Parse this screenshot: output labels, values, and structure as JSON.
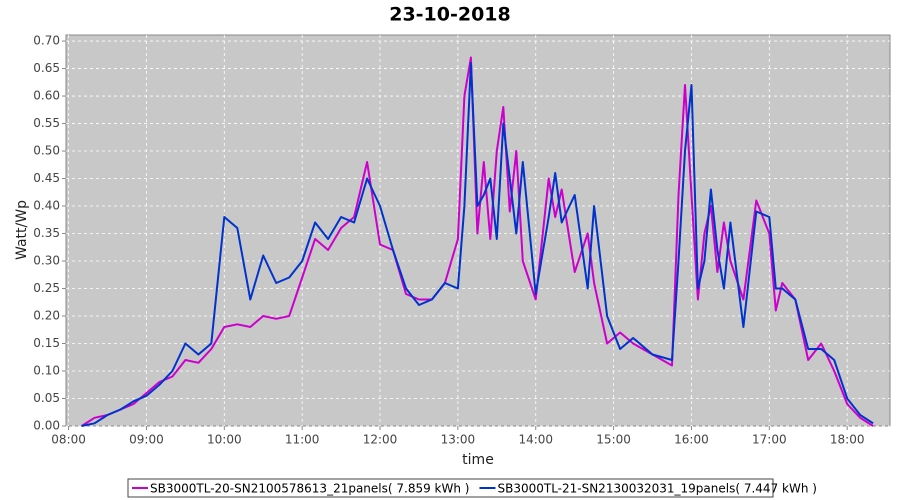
{
  "chart_data": {
    "type": "line",
    "title": "23-10-2018",
    "x_label": "time",
    "y_label": "Watt/Wp",
    "x": [
      "08:10",
      "08:20",
      "08:30",
      "08:40",
      "08:50",
      "09:00",
      "09:10",
      "09:20",
      "09:30",
      "09:40",
      "09:50",
      "10:00",
      "10:10",
      "10:20",
      "10:30",
      "10:40",
      "10:50",
      "11:00",
      "11:10",
      "11:20",
      "11:30",
      "11:40",
      "11:50",
      "12:00",
      "12:10",
      "12:20",
      "12:30",
      "12:40",
      "12:50",
      "13:00",
      "13:05",
      "13:10",
      "13:15",
      "13:20",
      "13:25",
      "13:30",
      "13:35",
      "13:40",
      "13:45",
      "13:50",
      "14:00",
      "14:10",
      "14:15",
      "14:20",
      "14:30",
      "14:40",
      "14:45",
      "14:55",
      "15:05",
      "15:15",
      "15:30",
      "15:45",
      "15:50",
      "15:55",
      "16:00",
      "16:05",
      "16:10",
      "16:15",
      "16:20",
      "16:25",
      "16:30",
      "16:40",
      "16:50",
      "17:00",
      "17:05",
      "17:10",
      "17:20",
      "17:30",
      "17:40",
      "17:50",
      "18:00",
      "18:10",
      "18:20"
    ],
    "series": [
      {
        "name": "SB3000TL-20-SN2100578613_21panels( 7.859 kWh )",
        "color": "#cc00cc",
        "values": [
          0.0,
          0.015,
          0.02,
          0.03,
          0.04,
          0.06,
          0.08,
          0.09,
          0.12,
          0.115,
          0.14,
          0.18,
          0.185,
          0.18,
          0.2,
          0.195,
          0.2,
          0.27,
          0.34,
          0.32,
          0.36,
          0.38,
          0.48,
          0.33,
          0.32,
          0.24,
          0.23,
          0.23,
          0.26,
          0.34,
          0.6,
          0.67,
          0.35,
          0.48,
          0.34,
          0.5,
          0.58,
          0.39,
          0.5,
          0.3,
          0.23,
          0.45,
          0.38,
          0.43,
          0.28,
          0.35,
          0.26,
          0.15,
          0.17,
          0.15,
          0.13,
          0.11,
          0.42,
          0.62,
          0.42,
          0.23,
          0.35,
          0.4,
          0.28,
          0.37,
          0.3,
          0.23,
          0.41,
          0.35,
          0.21,
          0.26,
          0.23,
          0.12,
          0.15,
          0.1,
          0.04,
          0.015,
          0.0
        ]
      },
      {
        "name": "SB3000TL-21-SN2130032031_19panels( 7.447 kWh )",
        "color": "#0033cc",
        "values": [
          0.0,
          0.005,
          0.02,
          0.03,
          0.045,
          0.055,
          0.075,
          0.1,
          0.15,
          0.13,
          0.15,
          0.38,
          0.36,
          0.23,
          0.31,
          0.26,
          0.27,
          0.3,
          0.37,
          0.34,
          0.38,
          0.37,
          0.45,
          0.4,
          0.32,
          0.25,
          0.22,
          0.23,
          0.26,
          0.25,
          0.4,
          0.66,
          0.4,
          0.42,
          0.45,
          0.34,
          0.55,
          0.45,
          0.35,
          0.48,
          0.24,
          0.38,
          0.46,
          0.37,
          0.42,
          0.25,
          0.4,
          0.2,
          0.14,
          0.16,
          0.13,
          0.12,
          0.3,
          0.5,
          0.62,
          0.25,
          0.3,
          0.43,
          0.32,
          0.25,
          0.37,
          0.18,
          0.39,
          0.38,
          0.25,
          0.25,
          0.23,
          0.14,
          0.14,
          0.12,
          0.05,
          0.02,
          0.005
        ]
      }
    ],
    "xlim": [
      "07:58",
      "18:33"
    ],
    "xticks": [
      "08:00",
      "09:00",
      "10:00",
      "11:00",
      "12:00",
      "13:00",
      "14:00",
      "15:00",
      "16:00",
      "17:00",
      "18:00"
    ],
    "ylim": [
      0,
      0.711
    ],
    "yticks": [
      {
        "value": 0,
        "label": "0.00"
      },
      0.05,
      {
        "value": 0.1,
        "label": "0.10"
      },
      0.15,
      {
        "value": 0.2,
        "label": "0.20"
      },
      0.25,
      {
        "value": 0.3,
        "label": "0.30"
      },
      0.35,
      {
        "value": 0.4,
        "label": "0.40"
      },
      0.45,
      {
        "value": 0.5,
        "label": "0.50"
      },
      0.55,
      {
        "value": 0.6,
        "label": "0.60"
      },
      0.65,
      {
        "value": 0.7,
        "label": "0.70"
      }
    ],
    "grid": true,
    "legend": "bottom"
  }
}
